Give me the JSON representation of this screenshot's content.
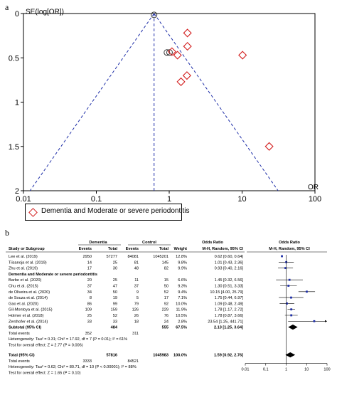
{
  "panels": {
    "a": "a",
    "b": "b"
  },
  "chart_data": [
    {
      "type": "scatter",
      "subtype": "funnel plot",
      "xlabel": "OR",
      "ylabel": "SE(log[OR])",
      "xscale": "log",
      "xlim": [
        0.01,
        100
      ],
      "ylim": [
        0,
        2
      ],
      "yaxis_inverted": true,
      "xticks": [
        "0.01",
        "0.1",
        "1",
        "10",
        "100"
      ],
      "yticks": [
        "0",
        "0.5",
        "1",
        "1.5",
        "2"
      ],
      "pooled_or": 0.62,
      "grid": false,
      "legend": {
        "position": "bottom-left",
        "label": "Dementia and Moderate or severe periodontitis",
        "color": "#d32020"
      },
      "series": [
        {
          "marker": "circle",
          "color": "#333333",
          "points": [
            {
              "x": 0.62,
              "y": 0.015
            },
            {
              "x": 0.93,
              "y": 0.44
            },
            {
              "x": 1.01,
              "y": 0.44
            }
          ]
        },
        {
          "name": "Dementia and Moderate or severe periodontitis",
          "marker": "diamond",
          "color": "#d32020",
          "points": [
            {
              "x": 1.78,
              "y": 0.22
            },
            {
              "x": 1.78,
              "y": 0.37
            },
            {
              "x": 1.09,
              "y": 0.43
            },
            {
              "x": 1.3,
              "y": 0.47
            },
            {
              "x": 10.15,
              "y": 0.47
            },
            {
              "x": 1.75,
              "y": 0.7
            },
            {
              "x": 1.45,
              "y": 0.77
            },
            {
              "x": 23.54,
              "y": 1.5
            }
          ]
        }
      ]
    },
    {
      "type": "table",
      "subtype": "forest plot",
      "headers": {
        "dementia": "Dementia",
        "control": "Control",
        "odds_ratio": "Odds Ratio",
        "study": "Study or Subgroup",
        "events": "Events",
        "total": "Total",
        "weight": "Weight",
        "method": "M-H, Random, 95% CI",
        "method2": "M-H, Random, 95% CI"
      },
      "axis": {
        "scale": "log",
        "ticks": [
          "0.01",
          "0.1",
          "1",
          "10",
          "100"
        ],
        "lim": [
          0.01,
          100
        ]
      },
      "group1": [
        {
          "study": "Lee et al. (2019)",
          "ev1": "2950",
          "tot1": "57277",
          "ev2": "84081",
          "tot2": "1045201",
          "weight": "12.8%",
          "ci": "0.62 [0.60, 0.64]",
          "or": 0.62,
          "lo": 0.6,
          "hi": 0.64
        },
        {
          "study": "Tiisanoja et al. (2019)",
          "ev1": "14",
          "tot1": "25",
          "ev2": "81",
          "tot2": "145",
          "weight": "9.8%",
          "ci": "1.01 [0.43, 2.36]",
          "or": 1.01,
          "lo": 0.43,
          "hi": 2.36
        },
        {
          "study": "Zhu et al. (2019)",
          "ev1": "17",
          "tot1": "30",
          "ev2": "48",
          "tot2": "82",
          "weight": "9.9%",
          "ci": "0.93 [0.40, 2.16]",
          "or": 0.93,
          "lo": 0.4,
          "hi": 2.16
        }
      ],
      "subgroup_title": "Dementia and Moderate or severe periodontitis",
      "group2": [
        {
          "study": "Barbe et al. (2020)",
          "ev1": "20",
          "tot1": "25",
          "ev2": "11",
          "tot2": "15",
          "weight": "6.6%",
          "ci": "1.45 [0.32, 6.56]",
          "or": 1.45,
          "lo": 0.32,
          "hi": 6.56
        },
        {
          "study": "Chu et al. (2015)",
          "ev1": "37",
          "tot1": "47",
          "ev2": "37",
          "tot2": "50",
          "weight": "9.3%",
          "ci": "1.30 [0.51, 3.33]",
          "or": 1.3,
          "lo": 0.51,
          "hi": 3.33
        },
        {
          "study": "de Oliveira et al. (2020)",
          "ev1": "34",
          "tot1": "50",
          "ev2": "9",
          "tot2": "52",
          "weight": "9.4%",
          "ci": "10.15 [4.00, 25.79]",
          "or": 10.15,
          "lo": 4.0,
          "hi": 25.79
        },
        {
          "study": "de Souza et al. (2014)",
          "ev1": "8",
          "tot1": "19",
          "ev2": "5",
          "tot2": "17",
          "weight": "7.1%",
          "ci": "1.75 [0.44, 6.97]",
          "or": 1.75,
          "lo": 0.44,
          "hi": 6.97
        },
        {
          "study": "Gao et al. (2020)",
          "ev1": "86",
          "tot1": "99",
          "ev2": "79",
          "tot2": "92",
          "weight": "10.0%",
          "ci": "1.09 [0.48, 2.49]",
          "or": 1.09,
          "lo": 0.48,
          "hi": 2.49
        },
        {
          "study": "Gil-Montoya et al. (2015)",
          "ev1": "109",
          "tot1": "159",
          "ev2": "126",
          "tot2": "229",
          "weight": "11.9%",
          "ci": "1.78 [1.17, 2.72]",
          "or": 1.78,
          "lo": 1.17,
          "hi": 2.72
        },
        {
          "study": "Holmer et al. (2018)",
          "ev1": "25",
          "tot1": "52",
          "ev2": "26",
          "tot2": "76",
          "weight": "10.5%",
          "ci": "1.78 [0.87, 3.66]",
          "or": 1.78,
          "lo": 0.87,
          "hi": 3.66
        },
        {
          "study": "Zenthofer et al. (2014)",
          "ev1": "33",
          "tot1": "33",
          "ev2": "18",
          "tot2": "24",
          "weight": "2.8%",
          "ci": "23.54 [1.25, 441.71]",
          "or": 23.54,
          "lo": 1.25,
          "hi": 441.71
        }
      ],
      "subtotal": {
        "label": "Subtotal (95% CI)",
        "tot1": "484",
        "tot2": "555",
        "weight": "67.5%",
        "ci": "2.13 [1.25, 3.64]",
        "or": 2.13,
        "lo": 1.25,
        "hi": 3.64
      },
      "subtotal_events": {
        "label": "Total events",
        "ev1": "352",
        "ev2": "311"
      },
      "subtotal_het": "Heterogeneity: Tau² = 0.31; Chi² = 17.92, df = 7 (P = 0.01); I² = 61%",
      "subtotal_test": "Test for overall effect: Z = 2.77 (P = 0.006)",
      "total": {
        "label": "Total (95% CI)",
        "tot1": "57816",
        "tot2": "1045983",
        "weight": "100.0%",
        "ci": "1.59 [0.92, 2.76]",
        "or": 1.59,
        "lo": 0.92,
        "hi": 2.76
      },
      "total_events": {
        "label": "Total events",
        "ev1": "3333",
        "ev2": "84521"
      },
      "total_het": "Heterogeneity: Tau² = 0.62; Chi² = 80.71, df = 10 (P < 0.00001); I² = 88%",
      "total_test": "Test for overall effect: Z = 1.65 (P = 0.10)",
      "colors": {
        "study_marker": "#1f2fa8",
        "summary": "#000000"
      }
    }
  ]
}
